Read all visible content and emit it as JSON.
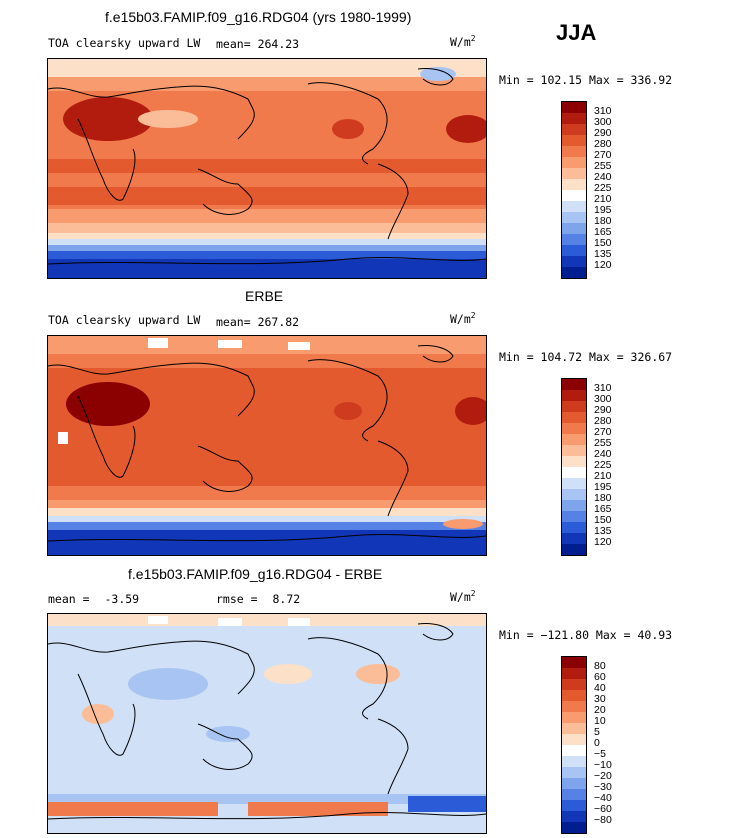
{
  "season": "JJA",
  "panels": [
    {
      "id": "model",
      "title": "f.e15b03.FAMIP.f09_g16.RDG04 (yrs 1980-1999)",
      "variable": "TOA clearsky upward LW",
      "mean_label": "mean=",
      "mean_value": "264.23",
      "units": "W/m",
      "units_exp": "2",
      "minmax": "Min = 102.15  Max = 336.92",
      "colorbar_labels": [
        "310",
        "300",
        "290",
        "280",
        "270",
        "255",
        "240",
        "225",
        "210",
        "195",
        "180",
        "165",
        "150",
        "135",
        "120"
      ],
      "colorbar_colors": [
        "#8b0000",
        "#b21c0e",
        "#cf3b1e",
        "#e35a2e",
        "#f07a4c",
        "#f89c70",
        "#fbbd97",
        "#fde0c8",
        "#ffffff",
        "#cfe0f7",
        "#a8c4f2",
        "#7ea5ec",
        "#5582e4",
        "#2b5bd6",
        "#1236b8",
        "#001e8f"
      ]
    },
    {
      "id": "obs",
      "title": "ERBE",
      "variable": "TOA clearsky upward LW",
      "mean_label": "mean=",
      "mean_value": "267.82",
      "units": "W/m",
      "units_exp": "2",
      "minmax": "Min = 104.72  Max = 326.67",
      "colorbar_labels": [
        "310",
        "300",
        "290",
        "280",
        "270",
        "255",
        "240",
        "225",
        "210",
        "195",
        "180",
        "165",
        "150",
        "135",
        "120"
      ],
      "colorbar_colors": [
        "#8b0000",
        "#b21c0e",
        "#cf3b1e",
        "#e35a2e",
        "#f07a4c",
        "#f89c70",
        "#fbbd97",
        "#fde0c8",
        "#ffffff",
        "#cfe0f7",
        "#a8c4f2",
        "#7ea5ec",
        "#5582e4",
        "#2b5bd6",
        "#1236b8",
        "#001e8f"
      ]
    },
    {
      "id": "diff",
      "title": "f.e15b03.FAMIP.f09_g16.RDG04 - ERBE",
      "mean_label": "mean =",
      "mean_value": "-3.59",
      "rmse_label": "rmse =",
      "rmse_value": "8.72",
      "units": "W/m",
      "units_exp": "2",
      "minmax": "Min = −121.80  Max =   40.93",
      "colorbar_labels": [
        "80",
        "60",
        "40",
        "30",
        "20",
        "10",
        "5",
        "0",
        "−5",
        "−10",
        "−20",
        "−30",
        "−40",
        "−60",
        "−80"
      ],
      "colorbar_colors": [
        "#8b0000",
        "#b21c0e",
        "#cf3b1e",
        "#e35a2e",
        "#f07a4c",
        "#f89c70",
        "#fbbd97",
        "#fde0c8",
        "#ffffff",
        "#cfe0f7",
        "#a8c4f2",
        "#7ea5ec",
        "#5582e4",
        "#2b5bd6",
        "#1236b8",
        "#001e8f"
      ]
    }
  ]
}
